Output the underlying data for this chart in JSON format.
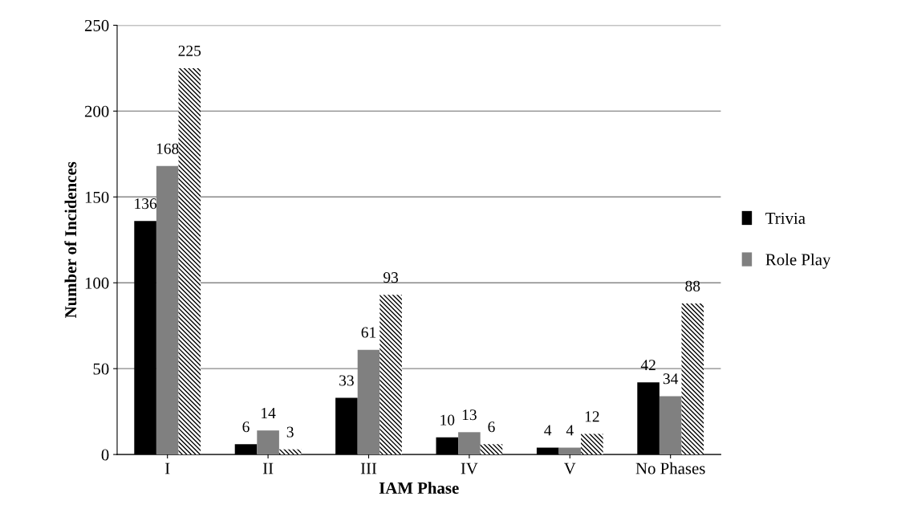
{
  "chart_data": {
    "type": "bar",
    "xlabel": "IAM Phase",
    "ylabel": "Number of Incidences",
    "categories": [
      "I",
      "II",
      "III",
      "IV",
      "V",
      "No Phases"
    ],
    "series": [
      {
        "name": "Trivia",
        "color": "#000000",
        "values": [
          136,
          6,
          33,
          10,
          4,
          42
        ]
      },
      {
        "name": "Role Play",
        "color": "#808080",
        "values": [
          168,
          14,
          61,
          13,
          4,
          34
        ]
      },
      {
        "color": "#ffffff",
        "values": [
          225,
          3,
          93,
          6,
          12,
          88
        ]
      }
    ],
    "ylim": [
      0,
      250
    ],
    "yticks": [
      0,
      50,
      100,
      150,
      200,
      250
    ],
    "grid": "y",
    "legend": "right",
    "data_labels": true
  }
}
